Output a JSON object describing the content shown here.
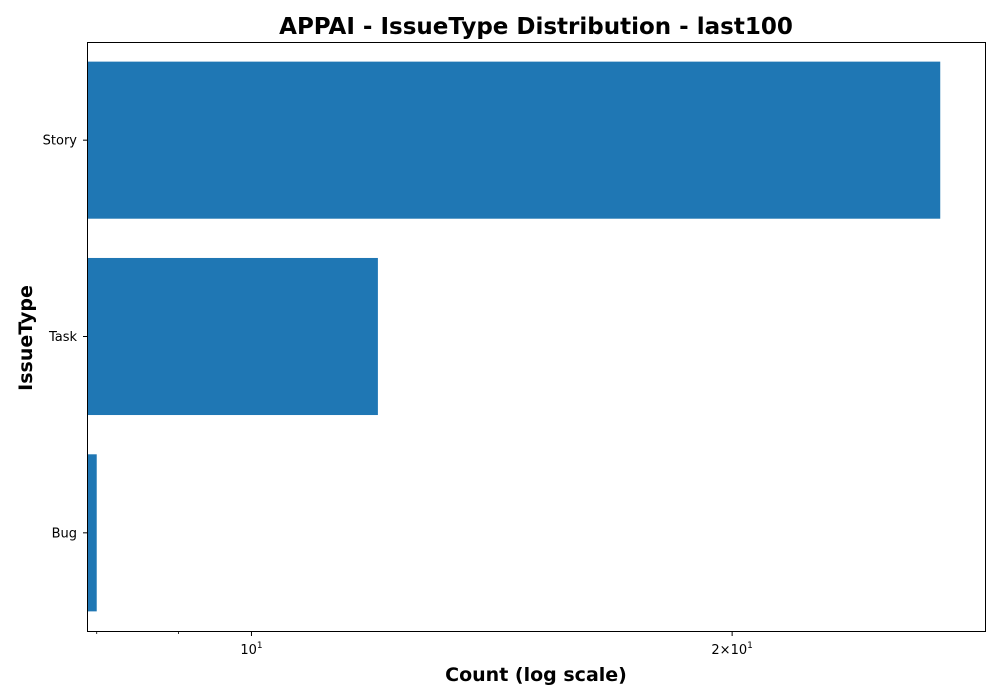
{
  "chart_data": {
    "type": "bar",
    "orientation": "horizontal",
    "title": "APPAI - IssueType Distribution - last100",
    "xlabel": "Count (log scale)",
    "ylabel": "IssueType",
    "x_scale": "log",
    "xlim": [
      7.9,
      28.8
    ],
    "categories": [
      "Bug",
      "Task",
      "Story"
    ],
    "values": [
      8,
      12,
      27
    ],
    "x_major_ticks": [
      {
        "value": 10,
        "base": "10",
        "exp": "1"
      },
      {
        "value": 20,
        "base": "2×10",
        "exp": "1"
      }
    ],
    "x_minor_ticks": [
      8,
      9,
      30
    ],
    "bar_color": "#1f77b4",
    "grid": false,
    "legend": "none"
  }
}
